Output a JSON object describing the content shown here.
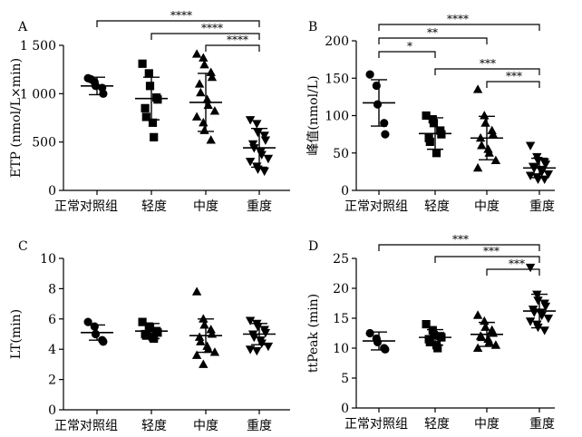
{
  "chart_data": [
    {
      "type": "scatter",
      "panel": "A",
      "ylabel": "ETP (nmol/L×min)",
      "ylim": [
        0,
        1500
      ],
      "yticks": [
        0,
        500,
        1000,
        1500
      ],
      "ytick_labels": [
        "0",
        "500",
        "1 000",
        "1 500"
      ],
      "categories": [
        "正常对照组",
        "轻度",
        "中度",
        "重度"
      ],
      "marker": [
        "circle",
        "square",
        "triangle-up",
        "triangle-down"
      ],
      "mean": [
        1080,
        950,
        910,
        440
      ],
      "sd": [
        90,
        220,
        300,
        200
      ],
      "points": [
        [
          1160,
          1120,
          1080,
          1060,
          1000,
          1150
        ],
        [
          1310,
          1210,
          1080,
          960,
          940,
          850,
          760,
          700,
          550
        ],
        [
          1410,
          1370,
          1300,
          1220,
          1170,
          1100,
          1010,
          940,
          880,
          820,
          760,
          700,
          620,
          520
        ],
        [
          730,
          690,
          600,
          570,
          520,
          480,
          440,
          400,
          370,
          330,
          300,
          250,
          220,
          200
        ]
      ],
      "comparisons": [
        {
          "from": 0,
          "to": 3,
          "label": "****"
        },
        {
          "from": 1,
          "to": 3,
          "label": "****"
        },
        {
          "from": 2,
          "to": 3,
          "label": "****"
        }
      ]
    },
    {
      "type": "scatter",
      "panel": "B",
      "ylabel": "峰值(nmol/L)",
      "ylim": [
        0,
        200
      ],
      "yticks": [
        0,
        50,
        100,
        150,
        200
      ],
      "ytick_labels": [
        "0",
        "50",
        "100",
        "150",
        "200"
      ],
      "categories": [
        "正常对照组",
        "轻度",
        "中度",
        "重度"
      ],
      "marker": [
        "circle",
        "square",
        "triangle-up",
        "triangle-down"
      ],
      "mean": [
        117,
        76,
        70,
        30
      ],
      "sd": [
        31,
        21,
        29,
        13
      ],
      "points": [
        [
          155,
          140,
          115,
          90,
          75
        ],
        [
          100,
          95,
          90,
          80,
          75,
          70,
          65,
          50
        ],
        [
          135,
          100,
          90,
          80,
          75,
          70,
          60,
          55,
          50,
          40,
          30
        ],
        [
          60,
          45,
          40,
          38,
          35,
          32,
          30,
          28,
          25,
          22,
          20,
          18,
          15,
          15
        ]
      ],
      "comparisons": [
        {
          "from": 0,
          "to": 3,
          "label": "****"
        },
        {
          "from": 0,
          "to": 2,
          "label": "**"
        },
        {
          "from": 0,
          "to": 1,
          "label": "*"
        },
        {
          "from": 1,
          "to": 3,
          "label": "***"
        },
        {
          "from": 2,
          "to": 3,
          "label": "***"
        }
      ]
    },
    {
      "type": "scatter",
      "panel": "C",
      "ylabel": "LT(min)",
      "ylim": [
        0,
        10
      ],
      "yticks": [
        0,
        2,
        4,
        6,
        8,
        10
      ],
      "ytick_labels": [
        "0",
        "2",
        "4",
        "6",
        "8",
        "10"
      ],
      "categories": [
        "正常对照组",
        "轻度",
        "中度",
        "重度"
      ],
      "marker": [
        "circle",
        "square",
        "triangle-up",
        "triangle-down"
      ],
      "mean": [
        5.1,
        5.2,
        4.9,
        5.0
      ],
      "sd": [
        0.5,
        0.5,
        1.1,
        0.7
      ],
      "points": [
        [
          5.8,
          5.5,
          5.0,
          4.6,
          4.5
        ],
        [
          5.8,
          5.5,
          5.4,
          5.2,
          5.1,
          5.0,
          4.9,
          4.8,
          4.7
        ],
        [
          7.8,
          6.0,
          5.6,
          5.3,
          5.0,
          4.8,
          4.5,
          4.2,
          4.0,
          3.8,
          3.6,
          3.0
        ],
        [
          5.9,
          5.7,
          5.5,
          5.3,
          5.1,
          5.0,
          4.8,
          4.6,
          4.4,
          4.2,
          4.0,
          3.9
        ]
      ],
      "comparisons": []
    },
    {
      "type": "scatter",
      "panel": "D",
      "ylabel": "ttPeak (min)",
      "ylim": [
        0,
        25
      ],
      "yticks": [
        0,
        5,
        10,
        15,
        20,
        25
      ],
      "ytick_labels": [
        "0",
        "5",
        "10",
        "15",
        "20",
        "25"
      ],
      "categories": [
        "正常对照组",
        "轻度",
        "中度",
        "重度"
      ],
      "marker": [
        "circle",
        "square",
        "triangle-up",
        "triangle-down"
      ],
      "mean": [
        11.2,
        11.8,
        12.3,
        16.2
      ],
      "sd": [
        1.5,
        1.3,
        2.0,
        2.8
      ],
      "points": [
        [
          12.5,
          11.6,
          11.0,
          10.0,
          9.8
        ],
        [
          14.0,
          13.0,
          12.2,
          12.0,
          11.8,
          11.5,
          11.0,
          10.5,
          10.0
        ],
        [
          15.5,
          14.5,
          13.5,
          13.0,
          12.5,
          12.0,
          11.8,
          11.5,
          11.0,
          10.5,
          10.0
        ],
        [
          23.5,
          19.0,
          18.0,
          17.5,
          17.0,
          16.5,
          16.0,
          16.0,
          15.5,
          15.0,
          14.5,
          14.0,
          13.5,
          13.0
        ]
      ],
      "comparisons": [
        {
          "from": 0,
          "to": 3,
          "label": "***"
        },
        {
          "from": 1,
          "to": 3,
          "label": "***"
        },
        {
          "from": 2,
          "to": 3,
          "label": "***"
        }
      ]
    }
  ]
}
